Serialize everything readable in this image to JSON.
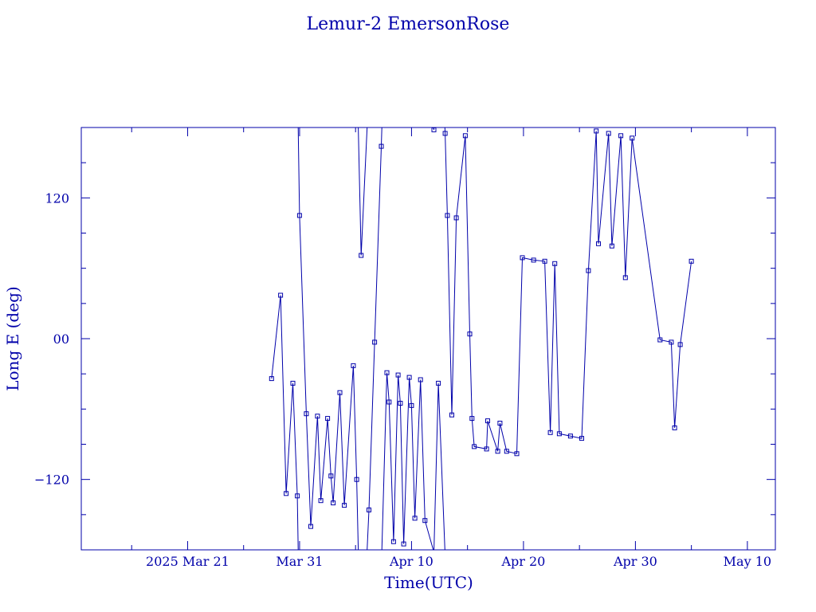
{
  "chart_data": {
    "type": "line",
    "title": "Lemur-2 EmersonRose",
    "xlabel": "Time(UTC)",
    "ylabel": "Long E (deg)",
    "color": "#0000aa",
    "x_axis": {
      "range_days_from_2025_mar_21": [
        -9.5,
        52.5
      ],
      "ticks": [
        {
          "day": 0,
          "label": "2025 Mar 21"
        },
        {
          "day": 10,
          "label": "Mar 31"
        },
        {
          "day": 20,
          "label": "Apr 10"
        },
        {
          "day": 30,
          "label": "Apr 20"
        },
        {
          "day": 40,
          "label": "Apr 30"
        },
        {
          "day": 50,
          "label": "May 10"
        }
      ]
    },
    "y_axis": {
      "range": [
        -180,
        180
      ],
      "ticks": [
        {
          "value": -120,
          "label": "−120"
        },
        {
          "value": 0,
          "label": "00"
        },
        {
          "value": 120,
          "label": "120"
        }
      ]
    },
    "series": [
      {
        "points": [
          [
            7.5,
            -34
          ],
          [
            8.3,
            37
          ],
          [
            8.8,
            -132
          ],
          [
            9.4,
            -38
          ],
          [
            9.8,
            -134
          ],
          [
            10.0,
            105
          ],
          [
            10.6,
            -64
          ],
          [
            11.0,
            -160
          ],
          [
            11.6,
            -66
          ],
          [
            11.9,
            -138
          ],
          [
            12.5,
            -68
          ],
          [
            12.8,
            -117
          ],
          [
            13.0,
            -140
          ],
          [
            13.6,
            -46
          ],
          [
            14.0,
            -142
          ],
          [
            14.8,
            -23
          ],
          [
            15.1,
            -120
          ],
          [
            15.5,
            71
          ],
          [
            16.2,
            -146
          ],
          [
            16.7,
            -3
          ],
          [
            17.3,
            164
          ],
          [
            17.8,
            -29
          ],
          [
            18.0,
            -54
          ],
          [
            18.4,
            -173
          ],
          [
            18.8,
            -31
          ],
          [
            19.0,
            -55
          ],
          [
            19.3,
            -175
          ],
          [
            19.8,
            -33
          ],
          [
            20.0,
            -57
          ],
          [
            20.3,
            -153
          ],
          [
            20.8,
            -35
          ],
          [
            21.2,
            -155
          ],
          [
            22.0,
            178
          ],
          [
            22.4,
            -38
          ],
          [
            23.0,
            175
          ],
          [
            23.2,
            105
          ],
          [
            23.6,
            -65
          ],
          [
            24.0,
            103
          ],
          [
            24.8,
            173
          ],
          [
            25.2,
            4
          ],
          [
            25.4,
            -68
          ],
          [
            25.6,
            -92
          ],
          [
            26.7,
            -94
          ],
          [
            26.8,
            -70
          ],
          [
            27.7,
            -96
          ],
          [
            27.9,
            -72
          ],
          [
            28.5,
            -96
          ],
          [
            29.4,
            -98
          ],
          [
            29.9,
            69
          ],
          [
            30.9,
            67
          ],
          [
            31.9,
            66
          ],
          [
            32.4,
            -80
          ],
          [
            32.8,
            64
          ],
          [
            33.2,
            -81
          ],
          [
            34.2,
            -83
          ],
          [
            35.2,
            -85
          ],
          [
            35.8,
            58
          ],
          [
            36.5,
            177
          ],
          [
            36.7,
            81
          ],
          [
            37.6,
            175
          ],
          [
            37.9,
            79
          ],
          [
            38.7,
            173
          ],
          [
            39.1,
            52
          ],
          [
            39.7,
            171
          ],
          [
            42.2,
            -1
          ],
          [
            43.2,
            -3
          ],
          [
            43.5,
            -76
          ],
          [
            44.0,
            -5
          ],
          [
            45.0,
            66
          ]
        ]
      }
    ]
  }
}
